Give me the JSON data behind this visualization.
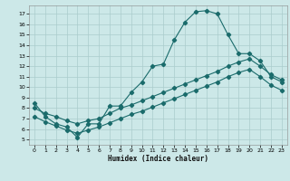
{
  "xlabel": "Humidex (Indice chaleur)",
  "bg_color": "#cce8e8",
  "grid_color": "#aacccc",
  "line_color": "#1a6b6b",
  "xlim": [
    -0.5,
    23.5
  ],
  "ylim": [
    4.5,
    17.8
  ],
  "xticks": [
    0,
    1,
    2,
    3,
    4,
    5,
    6,
    7,
    8,
    9,
    10,
    11,
    12,
    13,
    14,
    15,
    16,
    17,
    18,
    19,
    20,
    21,
    22,
    23
  ],
  "yticks": [
    5,
    6,
    7,
    8,
    9,
    10,
    11,
    12,
    13,
    14,
    15,
    16,
    17
  ],
  "line1_x": [
    0,
    1,
    2,
    3,
    4,
    5,
    6,
    7,
    8,
    9,
    10,
    11,
    12,
    13,
    14,
    15,
    16,
    17,
    18,
    19,
    20,
    21,
    22,
    23
  ],
  "line1_y": [
    8.5,
    7.2,
    6.5,
    6.2,
    5.2,
    6.5,
    6.5,
    8.2,
    8.2,
    9.5,
    10.5,
    12.0,
    12.2,
    14.5,
    16.2,
    17.2,
    17.3,
    17.0,
    15.0,
    13.2,
    13.2,
    12.5,
    11.0,
    10.5
  ],
  "line2_x": [
    0,
    1,
    2,
    3,
    4,
    5,
    6,
    7,
    8,
    9,
    10,
    11,
    12,
    13,
    14,
    15,
    16,
    17,
    18,
    19,
    20,
    21,
    22,
    23
  ],
  "line2_y": [
    8.0,
    7.5,
    7.2,
    6.8,
    6.5,
    6.8,
    7.0,
    7.5,
    8.0,
    8.3,
    8.7,
    9.1,
    9.5,
    9.9,
    10.3,
    10.7,
    11.1,
    11.5,
    12.0,
    12.4,
    12.7,
    12.0,
    11.2,
    10.7
  ],
  "line3_x": [
    0,
    1,
    2,
    3,
    4,
    5,
    6,
    7,
    8,
    9,
    10,
    11,
    12,
    13,
    14,
    15,
    16,
    17,
    18,
    19,
    20,
    21,
    22,
    23
  ],
  "line3_y": [
    7.2,
    6.7,
    6.3,
    5.9,
    5.6,
    5.9,
    6.2,
    6.6,
    7.0,
    7.4,
    7.7,
    8.1,
    8.5,
    8.9,
    9.3,
    9.7,
    10.1,
    10.5,
    11.0,
    11.4,
    11.7,
    11.0,
    10.2,
    9.7
  ]
}
